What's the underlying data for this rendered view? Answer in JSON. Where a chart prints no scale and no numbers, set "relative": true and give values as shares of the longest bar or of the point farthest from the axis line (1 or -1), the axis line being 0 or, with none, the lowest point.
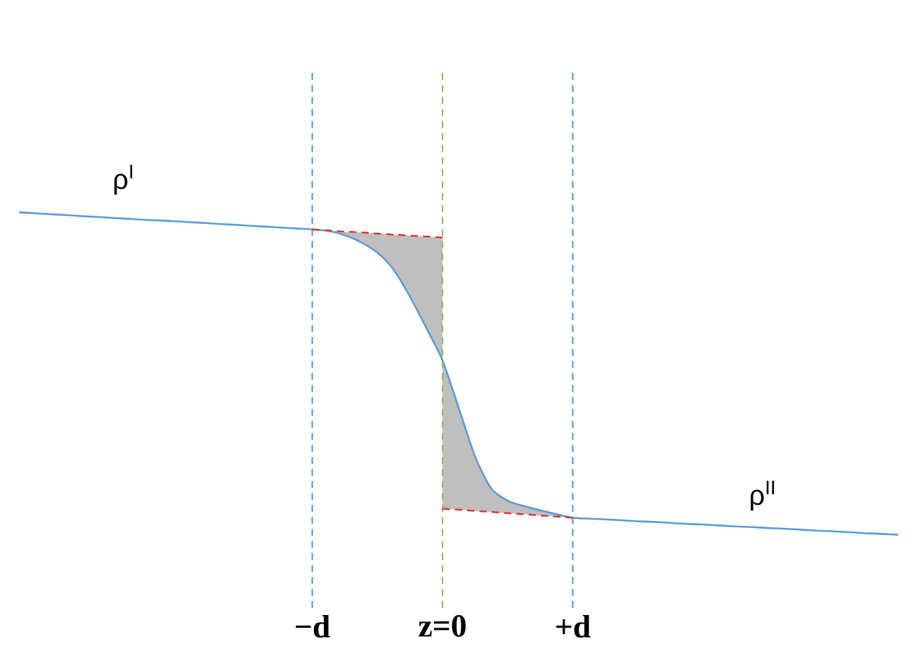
{
  "chart_data": {
    "type": "line",
    "relative": true,
    "marker": "none",
    "line_style": "solid",
    "categories": [
      null,
      null,
      null,
      null,
      null,
      null,
      null,
      null,
      null,
      null,
      null,
      null,
      null,
      null,
      null,
      null,
      null,
      null,
      "−d",
      null,
      null,
      null,
      null,
      null,
      null,
      null,
      "z=0",
      null,
      null,
      null,
      null,
      null,
      null,
      null,
      "+d",
      null,
      null,
      null,
      null,
      null,
      null,
      null,
      null,
      null,
      null,
      null,
      null,
      null,
      null,
      null,
      null,
      null,
      null,
      null,
      null
    ],
    "series": [
      {
        "color": "#5b9bd5",
        "values": [
          1,
          0.997,
          0.994,
          0.991,
          0.988,
          0.985,
          0.982,
          0.979,
          0.976,
          0.974,
          0.971,
          0.968,
          0.965,
          0.962,
          0.959,
          0.956,
          0.953,
          0.95,
          0.947,
          0.942,
          0.929,
          0.907,
          0.875,
          0.822,
          0.739,
          0.642,
          0.541,
          0.393,
          0.243,
          0.143,
          0.106,
          0.089,
          0.076,
          0.064,
          0.053,
          0.05,
          0.048,
          0.045,
          0.042,
          0.04,
          0.037,
          0.034,
          0.032,
          0.029,
          0.026,
          0.024,
          0.021,
          0.019,
          0.016,
          0.013,
          0.011,
          0.008,
          0.005,
          0.003,
          0
        ]
      },
      {
        "color": "#d9302c",
        "line_style": "dashed",
        "values": [
          null,
          null,
          null,
          null,
          null,
          null,
          null,
          null,
          null,
          null,
          null,
          null,
          null,
          null,
          null,
          null,
          null,
          null,
          0.947,
          0.944,
          0.94,
          0.938,
          0.934,
          0.931,
          0.928,
          0.925,
          0.922,
          null,
          null,
          null,
          null,
          null,
          null,
          null,
          null,
          null,
          null,
          null,
          null,
          null,
          null,
          null,
          null,
          null,
          null,
          null,
          null,
          null,
          null,
          null,
          null,
          null,
          null,
          null,
          null
        ],
        "lower": [
          null,
          null,
          null,
          null,
          null,
          null,
          null,
          null,
          null,
          null,
          null,
          null,
          null,
          null,
          null,
          null,
          null,
          null,
          0.947,
          0.942,
          0.929,
          0.907,
          0.875,
          0.822,
          0.739,
          0.642,
          0.541,
          null,
          null,
          null,
          null,
          null,
          null,
          null,
          null,
          null,
          null,
          null,
          null,
          null,
          null,
          null,
          null,
          null,
          null,
          null,
          null,
          null,
          null,
          null,
          null,
          null,
          null,
          null,
          null
        ],
        "upper": [
          null,
          null,
          null,
          null,
          null,
          null,
          null,
          null,
          null,
          null,
          null,
          null,
          null,
          null,
          null,
          null,
          null,
          null,
          0.947,
          0.944,
          0.94,
          0.938,
          0.934,
          0.931,
          0.928,
          0.925,
          0.922,
          null,
          null,
          null,
          null,
          null,
          null,
          null,
          null,
          null,
          null,
          null,
          null,
          null,
          null,
          null,
          null,
          null,
          null,
          null,
          null,
          null,
          null,
          null,
          null,
          null,
          null,
          null,
          null
        ]
      },
      {
        "color": "#d9302c",
        "line_style": "dashed",
        "values": [
          null,
          null,
          null,
          null,
          null,
          null,
          null,
          null,
          null,
          null,
          null,
          null,
          null,
          null,
          null,
          null,
          null,
          null,
          null,
          null,
          null,
          null,
          null,
          null,
          null,
          null,
          0.081,
          0.078,
          0.074,
          0.071,
          0.067,
          0.064,
          0.06,
          0.057,
          0.053,
          null,
          null,
          null,
          null,
          null,
          null,
          null,
          null,
          null,
          null,
          null,
          null,
          null,
          null,
          null,
          null,
          null,
          null,
          null,
          null
        ],
        "lower": [
          null,
          null,
          null,
          null,
          null,
          null,
          null,
          null,
          null,
          null,
          null,
          null,
          null,
          null,
          null,
          null,
          null,
          null,
          null,
          null,
          null,
          null,
          null,
          null,
          null,
          null,
          0.081,
          0.078,
          0.074,
          0.071,
          0.067,
          0.064,
          0.06,
          0.057,
          0.053,
          null,
          null,
          null,
          null,
          null,
          null,
          null,
          null,
          null,
          null,
          null,
          null,
          null,
          null,
          null,
          null,
          null,
          null,
          null,
          null
        ],
        "upper": [
          null,
          null,
          null,
          null,
          null,
          null,
          null,
          null,
          null,
          null,
          null,
          null,
          null,
          null,
          null,
          null,
          null,
          null,
          null,
          null,
          null,
          null,
          null,
          null,
          null,
          null,
          0.541,
          0.393,
          0.243,
          0.143,
          0.106,
          0.089,
          0.076,
          0.064,
          0.053,
          null,
          null,
          null,
          null,
          null,
          null,
          null,
          null,
          null,
          null,
          null,
          null,
          null,
          null,
          null,
          null,
          null,
          null,
          null,
          null
        ]
      }
    ],
    "ref_lines": [
      {
        "axis": "x",
        "value": "−d",
        "color": "#5b9bd5",
        "line_style": "dashed"
      },
      {
        "axis": "x",
        "value": "z=0",
        "color": "#9bbb59",
        "line_style": "dashed"
      },
      {
        "axis": "x",
        "value": "+d",
        "color": "#5b9bd5",
        "line_style": "dashed"
      }
    ],
    "annotations": [
      "ρ$^{I}$",
      "ρ$^{II}$"
    ]
  }
}
